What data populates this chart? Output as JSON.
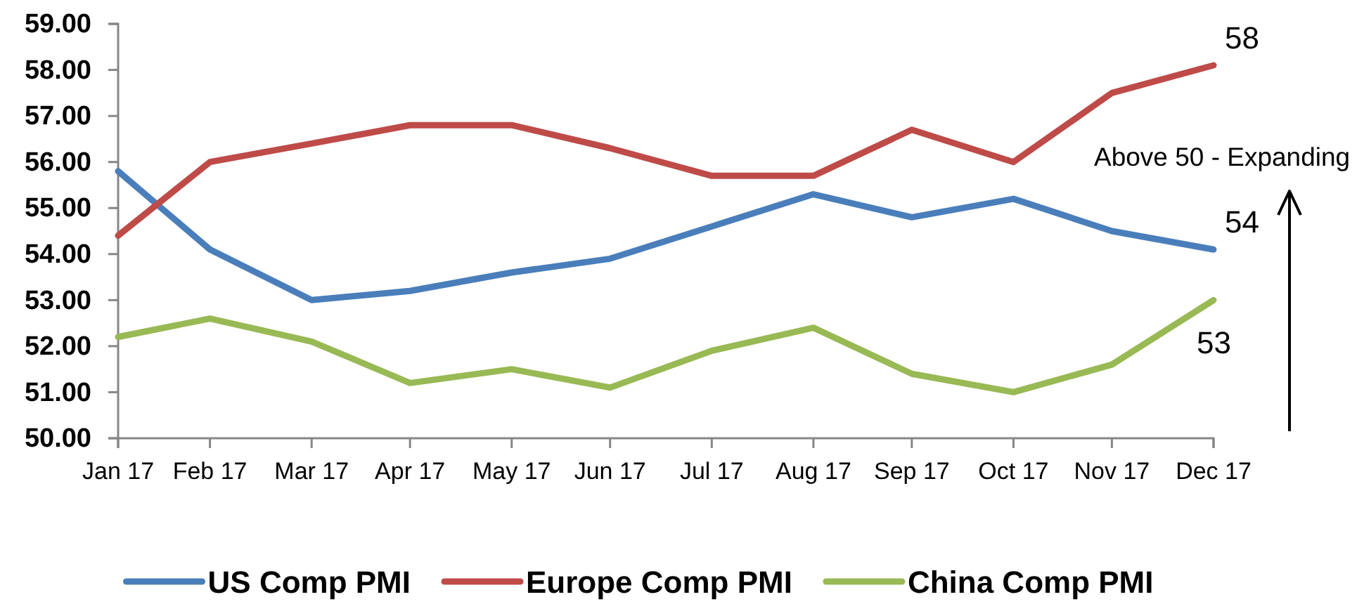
{
  "chart_data": {
    "type": "line",
    "x": [
      "2017-01-31",
      "2017-02-28",
      "2017-03-31",
      "2017-04-30",
      "2017-05-31",
      "2017-06-30",
      "2017-07-31",
      "2017-08-31",
      "2017-09-30",
      "2017-10-31",
      "2017-11-30",
      "2017-12-31"
    ],
    "xlim": [
      "2017-01-31",
      "2017-12-31"
    ],
    "xticks": [
      {
        "value": "2017-01-31",
        "label": "Jan 17"
      },
      {
        "value": "2017-02-28",
        "label": "Feb 17"
      },
      {
        "value": "2017-03-31",
        "label": "Mar 17"
      },
      {
        "value": "2017-04-30",
        "label": "Apr 17"
      },
      {
        "value": "2017-05-31",
        "label": "May 17"
      },
      {
        "value": "2017-06-30",
        "label": "Jun 17"
      },
      {
        "value": "2017-07-31",
        "label": "Jul 17"
      },
      {
        "value": "2017-08-31",
        "label": "Aug 17"
      },
      {
        "value": "2017-09-30",
        "label": "Sep 17"
      },
      {
        "value": "2017-10-31",
        "label": "Oct 17"
      },
      {
        "value": "2017-11-30",
        "label": "Nov 17"
      },
      {
        "value": "2017-12-31",
        "label": "Dec 17"
      }
    ],
    "ylim": [
      50,
      59
    ],
    "yticks": [
      {
        "value": 50,
        "label": "50.00"
      },
      {
        "value": 51,
        "label": "51.00"
      },
      {
        "value": 52,
        "label": "52.00"
      },
      {
        "value": 53,
        "label": "53.00"
      },
      {
        "value": 54,
        "label": "54.00"
      },
      {
        "value": 55,
        "label": "55.00"
      },
      {
        "value": 56,
        "label": "56.00"
      },
      {
        "value": 57,
        "label": "57.00"
      },
      {
        "value": 58,
        "label": "58.00"
      },
      {
        "value": 59,
        "label": "59.00"
      }
    ],
    "series": [
      {
        "name": "US Comp PMI",
        "color": "#4a7ebb",
        "values": [
          55.8,
          54.1,
          53.0,
          53.2,
          53.6,
          53.9,
          54.6,
          55.3,
          54.8,
          55.2,
          54.5,
          54.1
        ],
        "value_labels": [
          null,
          null,
          null,
          null,
          null,
          null,
          null,
          null,
          null,
          null,
          null,
          "54"
        ]
      },
      {
        "name": "Europe Comp PMI",
        "color": "#be4b48",
        "values": [
          54.4,
          56.0,
          56.4,
          56.8,
          56.8,
          56.3,
          55.7,
          55.7,
          56.7,
          56.0,
          57.5,
          58.1
        ],
        "value_labels": [
          null,
          null,
          null,
          null,
          null,
          null,
          null,
          null,
          null,
          null,
          null,
          "58"
        ]
      },
      {
        "name": "China Comp PMI",
        "color": "#98b954",
        "values": [
          52.2,
          52.6,
          52.1,
          51.2,
          51.5,
          51.1,
          51.9,
          52.4,
          51.4,
          51.0,
          51.6,
          53.0
        ],
        "value_labels": [
          null,
          null,
          null,
          null,
          null,
          null,
          null,
          null,
          null,
          null,
          null,
          "53"
        ]
      }
    ],
    "annotations": [
      "Above 50 - Expanding"
    ],
    "grid": false,
    "legend": "bottom",
    "marker": "none",
    "line_style": "solid"
  }
}
